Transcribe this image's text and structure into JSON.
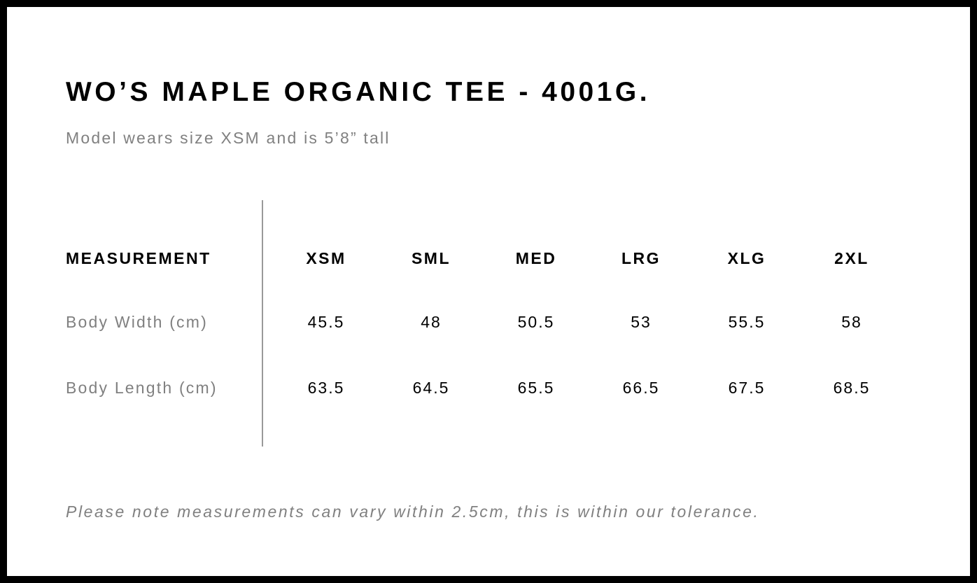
{
  "title": "WO’S MAPLE ORGANIC TEE - 4001G.",
  "subtitle": "Model wears size XSM and is 5’8” tall",
  "table": {
    "header_label": "MEASUREMENT",
    "sizes": [
      "XSM",
      "SML",
      "MED",
      "LRG",
      "XLG",
      "2XL"
    ],
    "rows": [
      {
        "label": "Body Width (cm)",
        "values": [
          "45.5",
          "48",
          "50.5",
          "53",
          "55.5",
          "58"
        ]
      },
      {
        "label": "Body Length (cm)",
        "values": [
          "63.5",
          "64.5",
          "65.5",
          "66.5",
          "67.5",
          "68.5"
        ]
      }
    ]
  },
  "note": "Please note measurements can vary within 2.5cm, this is within our tolerance."
}
